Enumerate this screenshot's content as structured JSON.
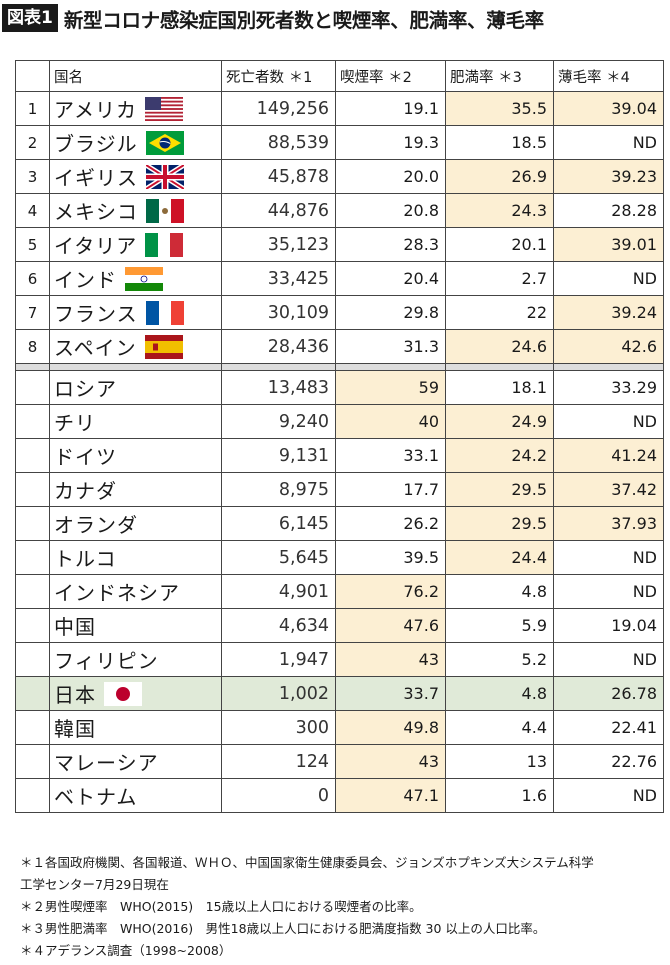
{
  "figure_label": "図表1",
  "title": "新型コロナ感染症国別死者数と喫煙率、肥満率、薄毛率",
  "columns": [
    "国名",
    "死亡者数 ＊1",
    "喫煙率 ＊2",
    "肥満率 ＊3",
    "薄毛率 ＊4"
  ],
  "colors": {
    "highlight": "#fcefd3",
    "japan_row": "#e0ead8",
    "separator": "#dddddd"
  },
  "ranked_rows": [
    {
      "rank": "1",
      "country": "アメリカ",
      "flag": "usa-flag",
      "deaths": "149,256",
      "smoking": "19.1",
      "obesity": "35.5",
      "hair_loss": "39.04",
      "hl": [
        false,
        true,
        true
      ]
    },
    {
      "rank": "2",
      "country": "ブラジル",
      "flag": "brazil-flag",
      "deaths": "88,539",
      "smoking": "19.3",
      "obesity": "18.5",
      "hair_loss": "ND",
      "hl": [
        false,
        false,
        false
      ]
    },
    {
      "rank": "3",
      "country": "イギリス",
      "flag": "uk-flag",
      "deaths": "45,878",
      "smoking": "20.0",
      "obesity": "26.9",
      "hair_loss": "39.23",
      "hl": [
        false,
        true,
        true
      ]
    },
    {
      "rank": "4",
      "country": "メキシコ",
      "flag": "mexico-flag",
      "deaths": "44,876",
      "smoking": "20.8",
      "obesity": "24.3",
      "hair_loss": "28.28",
      "hl": [
        false,
        true,
        false
      ]
    },
    {
      "rank": "5",
      "country": "イタリア",
      "flag": "italy-flag",
      "deaths": "35,123",
      "smoking": "28.3",
      "obesity": "20.1",
      "hair_loss": "39.01",
      "hl": [
        false,
        false,
        true
      ]
    },
    {
      "rank": "6",
      "country": "インド",
      "flag": "india-flag",
      "deaths": "33,425",
      "smoking": "20.4",
      "obesity": "2.7",
      "hair_loss": "ND",
      "hl": [
        false,
        false,
        false
      ]
    },
    {
      "rank": "7",
      "country": "フランス",
      "flag": "france-flag",
      "deaths": "30,109",
      "smoking": "29.8",
      "obesity": "22",
      "hair_loss": "39.24",
      "hl": [
        false,
        false,
        true
      ]
    },
    {
      "rank": "8",
      "country": "スペイン",
      "flag": "spain-flag",
      "deaths": "28,436",
      "smoking": "31.3",
      "obesity": "24.6",
      "hair_loss": "42.6",
      "hl": [
        false,
        true,
        true
      ]
    }
  ],
  "other_rows": [
    {
      "country": "ロシア",
      "deaths": "13,483",
      "smoking": "59",
      "obesity": "18.1",
      "hair_loss": "33.29",
      "hl": [
        true,
        false,
        false
      ]
    },
    {
      "country": "チリ",
      "deaths": "9,240",
      "smoking": "40",
      "obesity": "24.9",
      "hair_loss": "ND",
      "hl": [
        true,
        true,
        false
      ]
    },
    {
      "country": "ドイツ",
      "deaths": "9,131",
      "smoking": "33.1",
      "obesity": "24.2",
      "hair_loss": "41.24",
      "hl": [
        false,
        true,
        true
      ]
    },
    {
      "country": "カナダ",
      "deaths": "8,975",
      "smoking": "17.7",
      "obesity": "29.5",
      "hair_loss": "37.42",
      "hl": [
        false,
        true,
        true
      ]
    },
    {
      "country": "オランダ",
      "deaths": "6,145",
      "smoking": "26.2",
      "obesity": "29.5",
      "hair_loss": "37.93",
      "hl": [
        false,
        true,
        true
      ]
    },
    {
      "country": "トルコ",
      "deaths": "5,645",
      "smoking": "39.5",
      "obesity": "24.4",
      "hair_loss": "ND",
      "hl": [
        false,
        true,
        false
      ]
    },
    {
      "country": "インドネシア",
      "deaths": "4,901",
      "smoking": "76.2",
      "obesity": "4.8",
      "hair_loss": "ND",
      "hl": [
        true,
        false,
        false
      ]
    },
    {
      "country": "中国",
      "deaths": "4,634",
      "smoking": "47.6",
      "obesity": "5.9",
      "hair_loss": "19.04",
      "hl": [
        true,
        false,
        false
      ]
    },
    {
      "country": "フィリピン",
      "deaths": "1,947",
      "smoking": "43",
      "obesity": "5.2",
      "hair_loss": "ND",
      "hl": [
        true,
        false,
        false
      ]
    },
    {
      "country": "日本",
      "flag": "japan-flag",
      "japan": true,
      "deaths": "1,002",
      "smoking": "33.7",
      "obesity": "4.8",
      "hair_loss": "26.78",
      "hl": [
        false,
        false,
        false
      ]
    },
    {
      "country": "韓国",
      "deaths": "300",
      "smoking": "49.8",
      "obesity": "4.4",
      "hair_loss": "22.41",
      "hl": [
        true,
        false,
        false
      ]
    },
    {
      "country": "マレーシア",
      "deaths": "124",
      "smoking": "43",
      "obesity": "13",
      "hair_loss": "22.76",
      "hl": [
        true,
        false,
        false
      ]
    },
    {
      "country": "ベトナム",
      "deaths": "0",
      "smoking": "47.1",
      "obesity": "1.6",
      "hair_loss": "ND",
      "hl": [
        true,
        false,
        false
      ]
    }
  ],
  "notes": [
    "＊１各国政府機関、各国報道、ＷＨＯ、中国国家衛生健康委員会、ジョンズホプキンズ大システム科学",
    "工学センター7月29日現在",
    "＊２男性喫煙率　WHO(2015)　15歳以上人口における喫煙者の比率。",
    "＊３男性肥満率　WHO(2016)　男性18歳以上人口における肥満度指数 30 以上の人口比率。",
    "＊４アデランス調査（1998~2008）"
  ]
}
